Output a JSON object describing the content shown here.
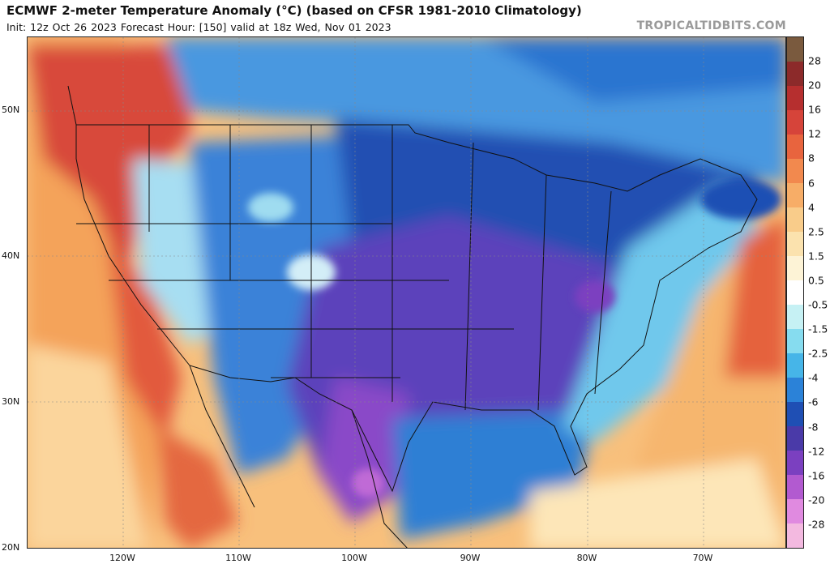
{
  "header": {
    "title": "ECMWF 2-meter Temperature Anomaly (°C) (based on CFSR 1981-2010 Climatology)",
    "subtitle": "Init: 12z Oct 26 2023   Forecast Hour: [150]   valid at 18z Wed, Nov 01 2023",
    "brand": "TROPICALTIDBITS.COM"
  },
  "axes": {
    "lat_labels": [
      "50N",
      "40N",
      "30N",
      "20N"
    ],
    "lon_labels": [
      "120W",
      "110W",
      "100W",
      "90W",
      "80W",
      "70W"
    ]
  },
  "colorbar": {
    "labels": [
      "28",
      "20",
      "16",
      "12",
      "8",
      "6",
      "4",
      "2.5",
      "1.5",
      "0.5",
      "-0.5",
      "-1.5",
      "-2.5",
      "-4",
      "-6",
      "-8",
      "-12",
      "-16",
      "-20",
      "-28"
    ],
    "colors": [
      "#7a5a3e",
      "#8c2a2a",
      "#b62f2f",
      "#d6443a",
      "#e8643e",
      "#f2894e",
      "#f7ad67",
      "#f9cc8a",
      "#fbe2ae",
      "#fdf3d6",
      "#ffffff",
      "#c6f1f4",
      "#86dcef",
      "#46b5e8",
      "#2b82d8",
      "#1f4fb4",
      "#4a3aa8",
      "#7b40c0",
      "#b25ad0",
      "#e08ae0",
      "#f3b9e0"
    ]
  },
  "map_colors": {
    "ocean_warm": "#f7b36a",
    "ocean_light": "#fbdca8",
    "west_hot": "#d8483b",
    "cold_blue": "#2f6fd0",
    "deep_blue": "#1f4fb4",
    "purple": "#6b44c2",
    "deep_purple": "#8a48c8",
    "light_cyan": "#8fd8ef"
  }
}
